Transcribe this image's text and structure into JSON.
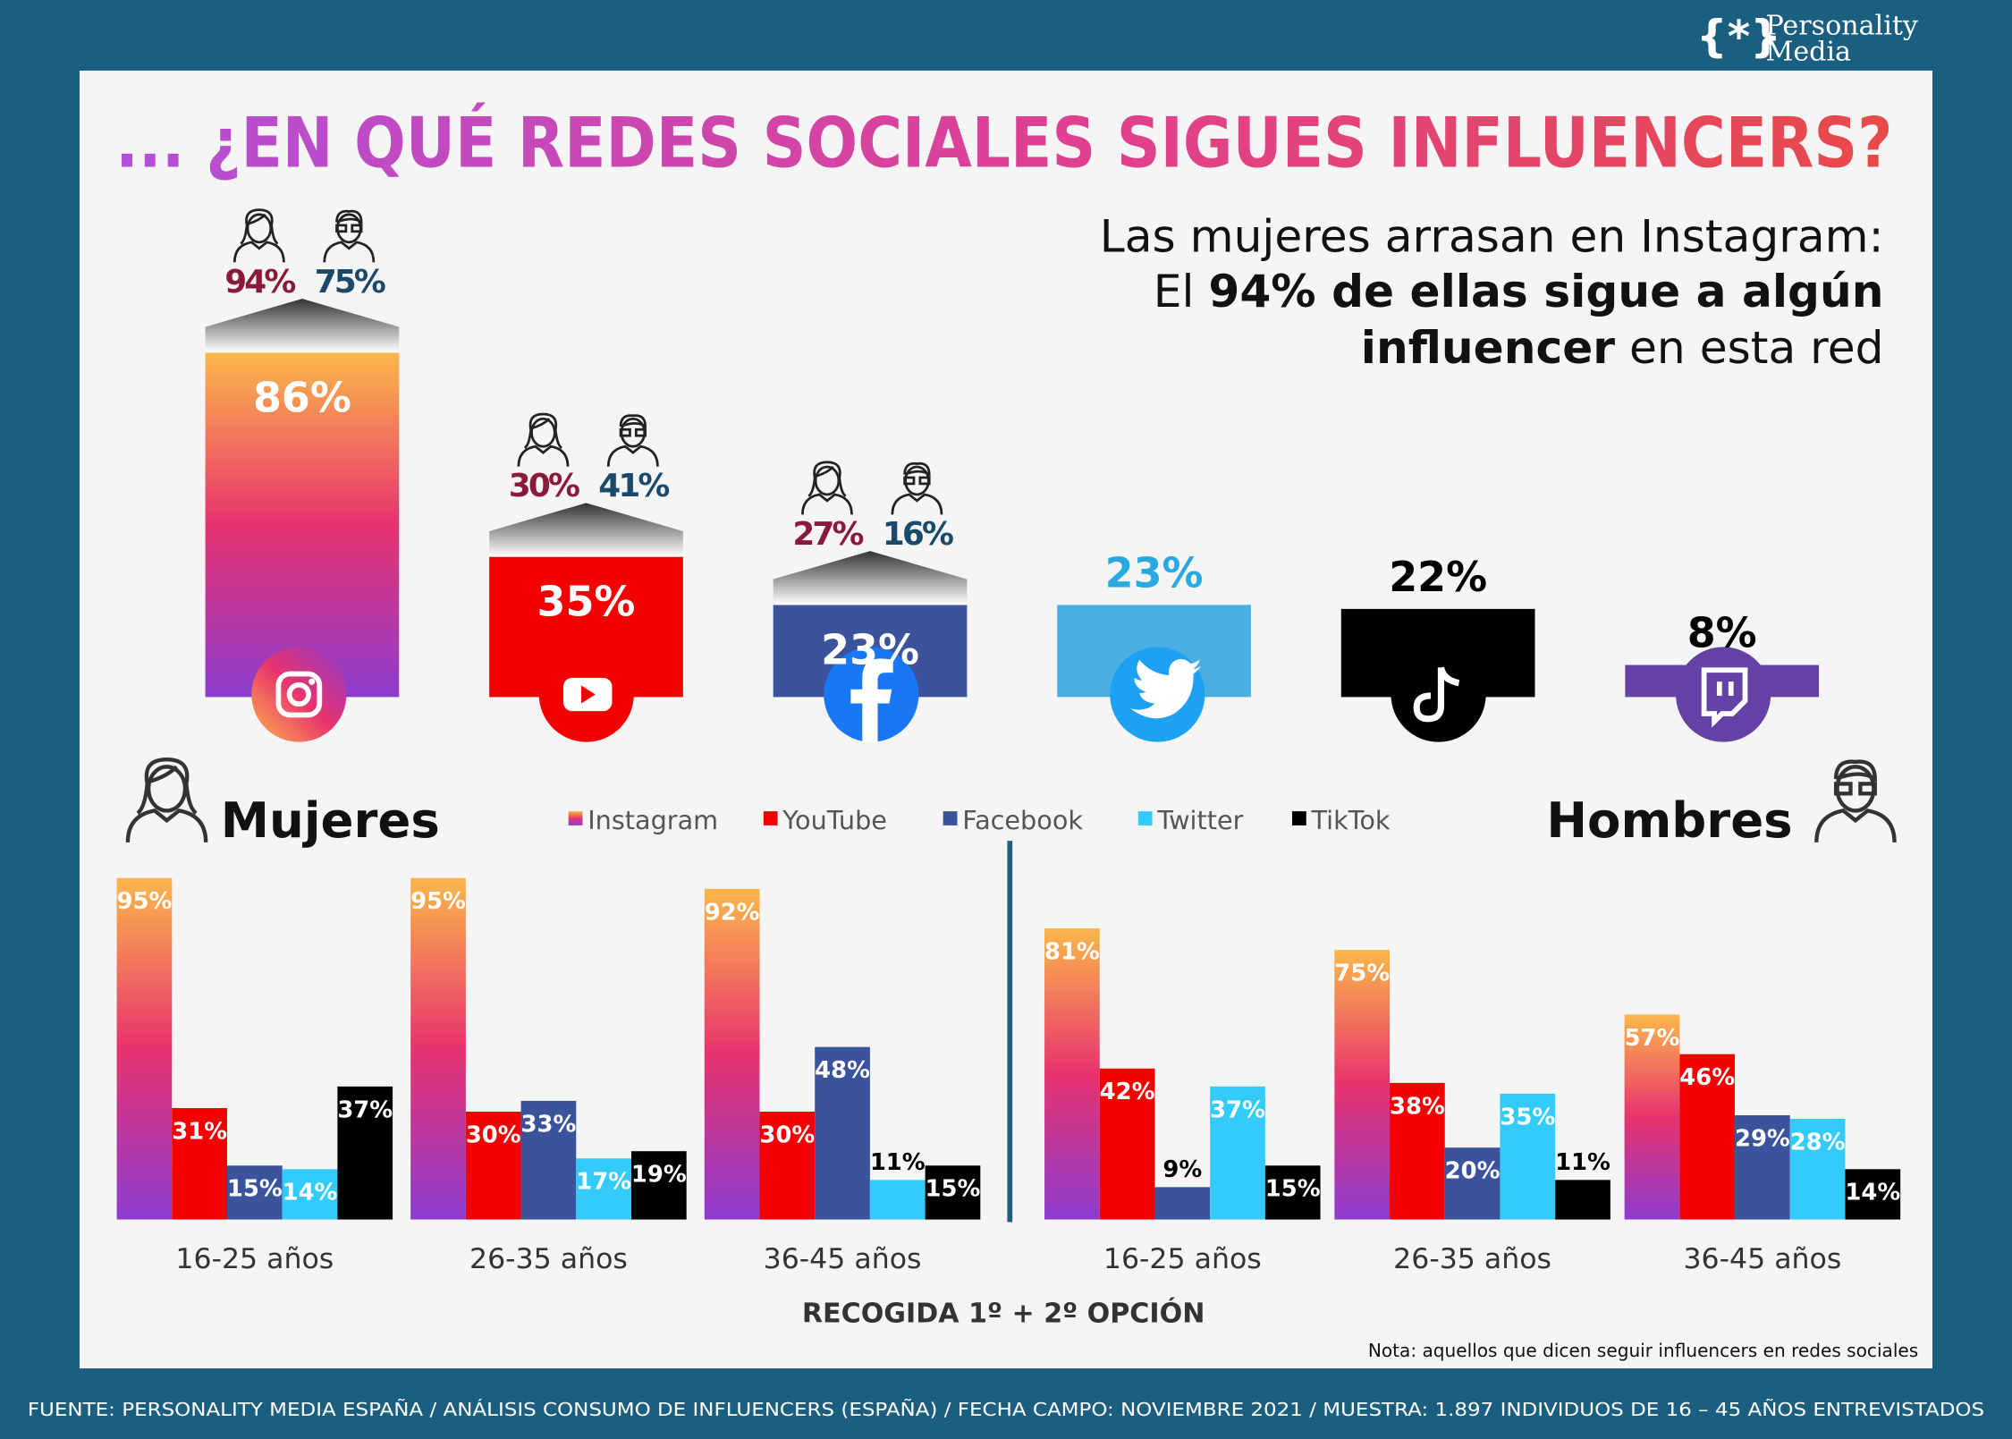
{
  "header": {
    "logo_mark": "{*}",
    "logo": [
      "Personality",
      "Media"
    ],
    "title": "... ¿EN QUÉ REDES SOCIALES SIGUES INFLUENCERS?",
    "subtitle": {
      "line1": "Las mujeres arrasan en Instagram:",
      "line2": [
        "El ",
        "94% de ellas sigue a algún"
      ],
      "line3": [
        "influencer",
        " en esta red"
      ]
    }
  },
  "chart_data": [
    {
      "type": "column",
      "values": [
        86,
        35,
        23,
        23,
        22,
        8
      ],
      "value_labels": [
        "86%",
        "35%",
        "23%",
        "23%",
        "22%",
        "8%"
      ],
      "colors": [
        "#e8336e",
        "#f50000",
        "#3b539c",
        "#4aaee0",
        "#000000",
        "#6441a5"
      ],
      "value_label_colors": [
        "#ffffff",
        "#ffffff",
        "#ffffff",
        "#29a9e1",
        "#000000",
        "#000000"
      ],
      "gradient": [
        true,
        false,
        false,
        false,
        false,
        false
      ],
      "women": {
        "values": [
          94,
          30,
          27
        ],
        "value_labels": [
          "94%",
          "30%",
          "27%"
        ],
        "color": "#8b1a3a"
      },
      "men": {
        "values": [
          75,
          41,
          16
        ],
        "value_labels": [
          "75%",
          "41%",
          "16%"
        ],
        "color": "#1a4a6a"
      }
    },
    {
      "type": "grouped_bar",
      "title": "Mujeres",
      "categories": [
        "16-25 años",
        "26-35 años",
        "36-45 años"
      ],
      "series": [
        {
          "name": "Instagram",
          "color": "#e8336e",
          "gradient": true,
          "values": [
            95,
            95,
            92
          ],
          "value_labels": [
            "95%",
            "95%",
            "92%"
          ]
        },
        {
          "name": "YouTube",
          "color": "#f50000",
          "values": [
            31,
            30,
            30
          ],
          "value_labels": [
            "31%",
            "30%",
            "30%"
          ]
        },
        {
          "name": "Facebook",
          "color": "#3b539c",
          "values": [
            15,
            33,
            48
          ],
          "value_labels": [
            "15%",
            "33%",
            "48%"
          ]
        },
        {
          "name": "Twitter",
          "color": "#33ccfa",
          "values": [
            14,
            17,
            11
          ],
          "value_labels": [
            "14%",
            "17%",
            "11%"
          ]
        },
        {
          "name": "TikTok",
          "color": "#000000",
          "values": [
            37,
            19,
            15
          ],
          "value_labels": [
            "37%",
            "19%",
            "15%"
          ]
        }
      ]
    },
    {
      "type": "grouped_bar",
      "title": "Hombres",
      "categories": [
        "16-25 años",
        "26-35 años",
        "36-45 años"
      ],
      "series": [
        {
          "color": "#e8336e",
          "gradient": true,
          "values": [
            81,
            75,
            57
          ],
          "value_labels": [
            "81%",
            "75%",
            "57%"
          ]
        },
        {
          "color": "#f50000",
          "values": [
            42,
            38,
            46
          ],
          "value_labels": [
            "42%",
            "38%",
            "46%"
          ]
        },
        {
          "color": "#3b539c",
          "values": [
            9,
            20,
            29
          ],
          "value_labels": [
            "9%",
            "20%",
            "29%"
          ]
        },
        {
          "color": "#33ccfa",
          "values": [
            37,
            35,
            28
          ],
          "value_labels": [
            "37%",
            "35%",
            "28%"
          ]
        },
        {
          "color": "#000000",
          "values": [
            15,
            11,
            14
          ],
          "value_labels": [
            "15%",
            "11%",
            "14%"
          ]
        }
      ]
    }
  ],
  "footer": {
    "caption": "RECOGIDA 1º + 2º OPCIÓN",
    "note": "Nota: aquellos que dicen seguir influencers en redes sociales",
    "source": "FUENTE:  PERSONALITY MEDIA ESPAÑA / ANÁLISIS CONSUMO DE INFLUENCERS (ESPAÑA) / FECHA CAMPO: NOVIEMBRE 2021 / MUESTRA: 1.897 INDIVIDUOS DE 16 – 45 AÑOS ENTREVISTADOS"
  }
}
